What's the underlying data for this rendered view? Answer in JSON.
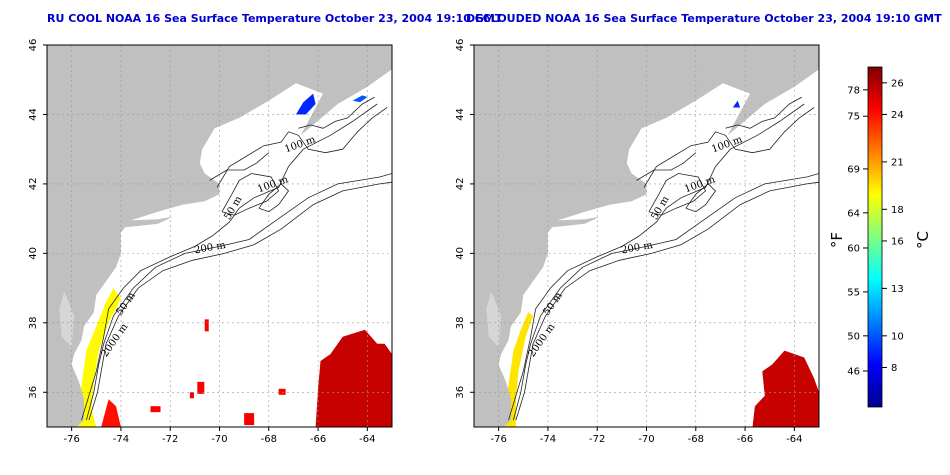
{
  "chart_data": [
    {
      "type": "heatmap",
      "title": "RU COOL NOAA 16 Sea Surface Temperature October 23, 2004 19:10 GMT",
      "xlim": [
        -77,
        -63
      ],
      "ylim": [
        35,
        46
      ],
      "x_ticks": [
        "-76",
        "-74",
        "-72",
        "-70",
        "-68",
        "-66",
        "-64"
      ],
      "y_ticks": [
        "36",
        "38",
        "40",
        "42",
        "44",
        "46"
      ],
      "grid": "dotted",
      "contour_labels": [
        "100 m",
        "100 m",
        "50 m",
        "200 m",
        "50 m",
        "2000 m"
      ]
    },
    {
      "type": "heatmap",
      "title": "DECLOUDED NOAA 16 Sea Surface Temperature October 23, 2004 19:10 GMT",
      "xlim": [
        -77,
        -63
      ],
      "ylim": [
        35,
        46
      ],
      "x_ticks": [
        "-76",
        "-74",
        "-72",
        "-70",
        "-68",
        "-66",
        "-64"
      ],
      "y_ticks": [
        "36",
        "38",
        "40",
        "42",
        "44",
        "46"
      ],
      "grid": "dotted",
      "contour_labels": [
        "100 m",
        "100 m",
        "50 m",
        "200 m",
        "50 m",
        "2000 m"
      ]
    }
  ],
  "colorbar": {
    "fahrenheit_unit": "°F",
    "celsius_unit": "°C",
    "fahrenheit_ticks": [
      "78",
      "75",
      "69",
      "64",
      "60",
      "55",
      "50",
      "46"
    ],
    "celsius_ticks": [
      "26",
      "24",
      "21",
      "18",
      "16",
      "13",
      "10",
      "8"
    ],
    "range_c": [
      5.5,
      27
    ],
    "colors": [
      "#00008f",
      "#0000ff",
      "#0080ff",
      "#00ffff",
      "#80ff80",
      "#ffff00",
      "#ff8000",
      "#ff0000",
      "#800000"
    ]
  },
  "colors": {
    "land": "#c0c0c0",
    "ocean": "#ffffff",
    "warm_water": "#e51010",
    "title": "#0000cc"
  }
}
